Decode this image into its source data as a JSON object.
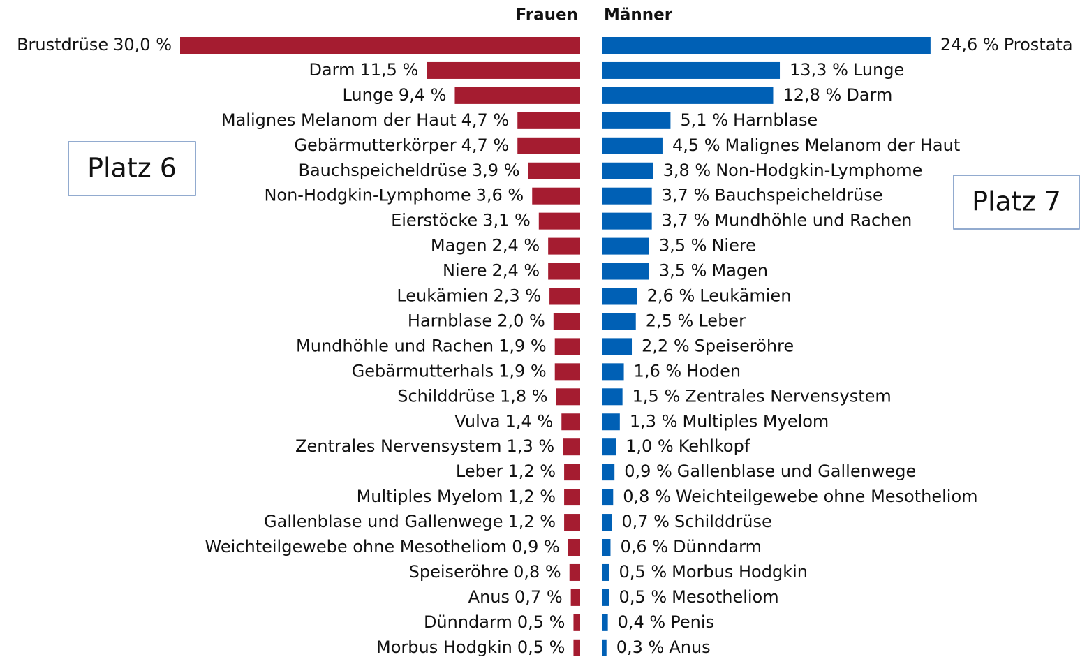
{
  "chart_data": [
    {
      "type": "bar",
      "orientation": "horizontal",
      "side": "left",
      "title": "Frauen",
      "color": "#a51c30",
      "annotation": "Platz 6",
      "categories": [
        "Brustdrüse",
        "Darm",
        "Lunge",
        "Malignes Melanom der Haut",
        "Gebärmutterkörper",
        "Bauchspeicheldrüse",
        "Non-Hodgkin-Lymphome",
        "Eierstöcke",
        "Magen",
        "Niere",
        "Leukämien",
        "Harnblase",
        "Mundhöhle und Rachen",
        "Gebärmutterhals",
        "Schilddrüse",
        "Vulva",
        "Zentrales Nervensystem",
        "Leber",
        "Multiples Myelom",
        "Gallenblase und Gallenwege",
        "Weichteilgewebe ohne Mesotheliom",
        "Speiseröhre",
        "Anus",
        "Dünndarm",
        "Morbus Hodgkin"
      ],
      "values": [
        30.0,
        11.5,
        9.4,
        4.7,
        4.7,
        3.9,
        3.6,
        3.1,
        2.4,
        2.4,
        2.3,
        2.0,
        1.9,
        1.9,
        1.8,
        1.4,
        1.3,
        1.2,
        1.2,
        1.2,
        0.9,
        0.8,
        0.7,
        0.5,
        0.5
      ],
      "value_labels": [
        "30,0 %",
        "11,5 %",
        "9,4 %",
        "4,7 %",
        "4,7 %",
        "3,9 %",
        "3,6 %",
        "3,1 %",
        "2,4 %",
        "2,4 %",
        "2,3 %",
        "2,0 %",
        "1,9 %",
        "1,9 %",
        "1,8 %",
        "1,4 %",
        "1,3 %",
        "1,2 %",
        "1,2 %",
        "1,2 %",
        "0,9 %",
        "0,8 %",
        "0,7 %",
        "0,5 %",
        "0,5 %"
      ]
    },
    {
      "type": "bar",
      "orientation": "horizontal",
      "side": "right",
      "title": "Männer",
      "color": "#0060b5",
      "annotation": "Platz 7",
      "categories": [
        "Prostata",
        "Lunge",
        "Darm",
        "Harnblase",
        "Malignes Melanom der Haut",
        "Non-Hodgkin-Lymphome",
        "Bauchspeicheldrüse",
        "Mundhöhle und Rachen",
        "Niere",
        "Magen",
        "Leukämien",
        "Leber",
        "Speiseröhre",
        "Hoden",
        "Zentrales Nervensystem",
        "Multiples Myelom",
        "Kehlkopf",
        "Gallenblase und Gallenwege",
        "Weichteilgewebe ohne Mesotheliom",
        "Schilddrüse",
        "Dünndarm",
        "Morbus Hodgkin",
        "Mesotheliom",
        "Penis",
        "Anus"
      ],
      "values": [
        24.6,
        13.3,
        12.8,
        5.1,
        4.5,
        3.8,
        3.7,
        3.7,
        3.5,
        3.5,
        2.6,
        2.5,
        2.2,
        1.6,
        1.5,
        1.3,
        1.0,
        0.9,
        0.8,
        0.7,
        0.6,
        0.5,
        0.5,
        0.4,
        0.3
      ],
      "value_labels": [
        "24,6 %",
        "13,3 %",
        "12,8 %",
        "5,1 %",
        "4,5 %",
        "3,8 %",
        "3,7 %",
        "3,7 %",
        "3,5 %",
        "3,5 %",
        "2,6 %",
        "2,5 %",
        "2,2 %",
        "1,6 %",
        "1,5 %",
        "1,3 %",
        "1,0 %",
        "0,9 %",
        "0,8 %",
        "0,7 %",
        "0,6 %",
        "0,5 %",
        "0,5 %",
        "0,4 %",
        "0,3 %"
      ]
    }
  ]
}
